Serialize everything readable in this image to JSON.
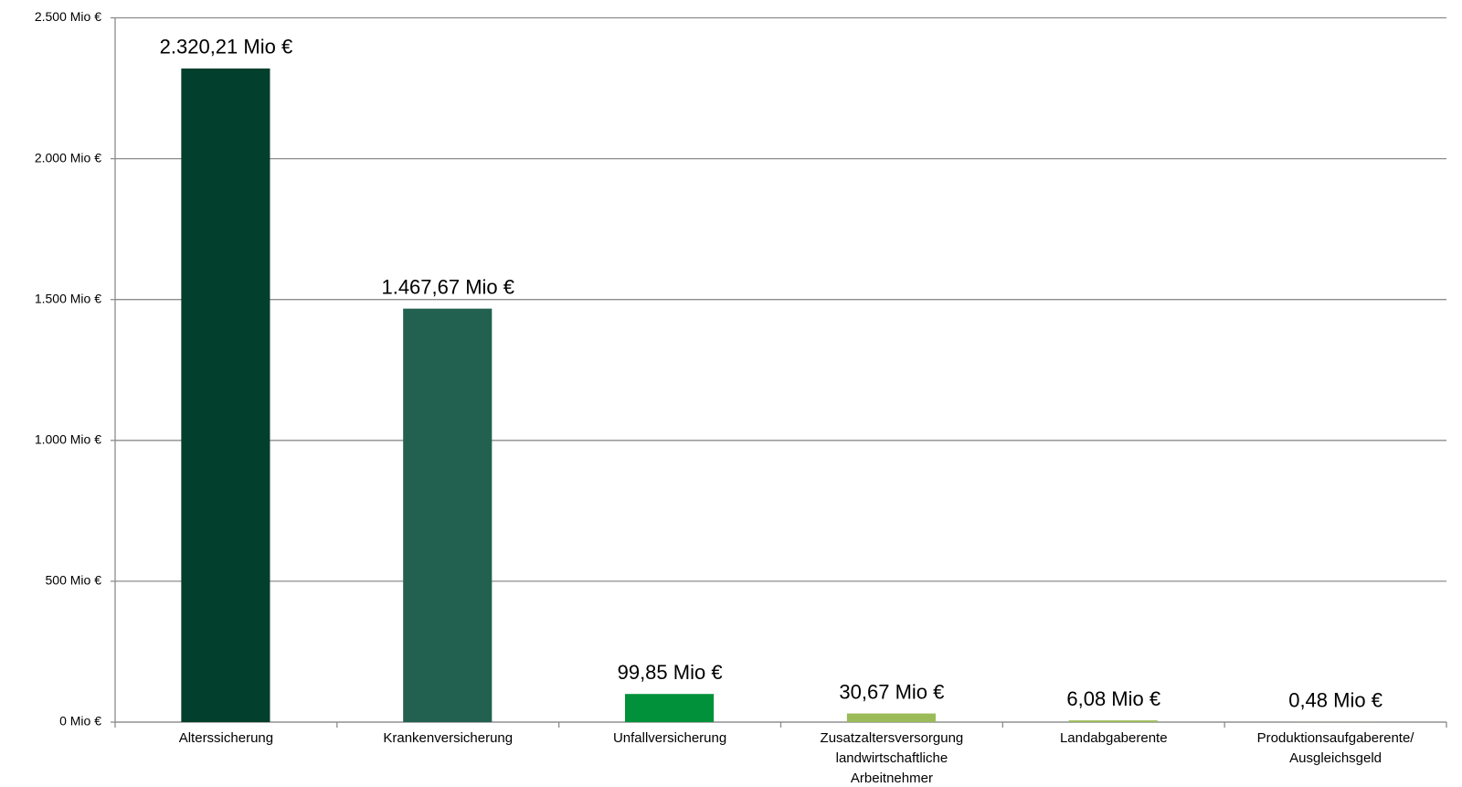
{
  "chart_data": {
    "type": "bar",
    "categories": [
      [
        "Alterssicherung"
      ],
      [
        "Krankenversicherung"
      ],
      [
        "Unfallversicherung"
      ],
      [
        "Zusatzaltersversorgung",
        "landwirtschaftliche",
        "Arbeitnehmer"
      ],
      [
        "Landabgaberente"
      ],
      [
        "Produktionsaufgaberente/",
        "Ausgleichsgeld"
      ]
    ],
    "values": [
      2320.21,
      1467.67,
      99.85,
      30.67,
      6.08,
      0.48
    ],
    "value_labels": [
      "2.320,21 Mio €",
      "1.467,67 Mio €",
      "99,85 Mio €",
      "30,67 Mio €",
      "6,08 Mio €",
      "0,48 Mio €"
    ],
    "colors": [
      "#033f2d",
      "#226050",
      "#00913a",
      "#9bbb59",
      "#9bbb59",
      "#9bbb59"
    ],
    "ylim": [
      0,
      2500
    ],
    "yticks": [
      {
        "value": 0,
        "label": "0 Mio €"
      },
      {
        "value": 500,
        "label": "500 Mio €"
      },
      {
        "value": 1000,
        "label": "1.000 Mio €"
      },
      {
        "value": 1500,
        "label": "1.500 Mio €"
      },
      {
        "value": 2000,
        "label": "2.000 Mio €"
      },
      {
        "value": 2500,
        "label": "2.500 Mio €"
      }
    ],
    "grid": true
  }
}
